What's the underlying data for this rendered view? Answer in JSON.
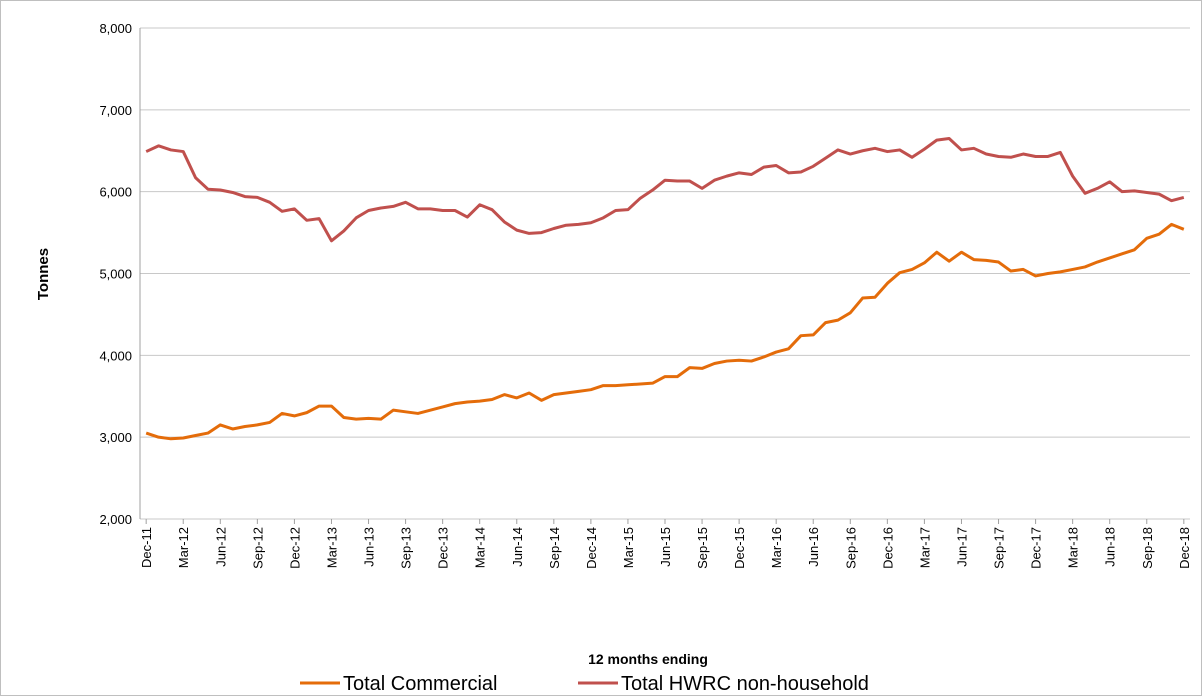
{
  "chart_data": {
    "type": "line",
    "y_label": "Tonnes",
    "x_label": "12 months ending",
    "ylim": [
      2000,
      8000
    ],
    "yticks": [
      {
        "value": 2000,
        "label": "2,000"
      },
      {
        "value": 3000,
        "label": "3,000"
      },
      {
        "value": 4000,
        "label": "4,000"
      },
      {
        "value": 5000,
        "label": "5,000"
      },
      {
        "value": 6000,
        "label": "6,000"
      },
      {
        "value": 7000,
        "label": "7,000"
      },
      {
        "value": 8000,
        "label": "8,000"
      }
    ],
    "grid": true,
    "legend": "bottom",
    "categories": [
      "Dec-11",
      null,
      null,
      "Mar-12",
      null,
      null,
      "Jun-12",
      null,
      null,
      "Sep-12",
      null,
      null,
      "Dec-12",
      null,
      null,
      "Mar-13",
      null,
      null,
      "Jun-13",
      null,
      null,
      "Sep-13",
      null,
      null,
      "Dec-13",
      null,
      null,
      "Mar-14",
      null,
      null,
      "Jun-14",
      null,
      null,
      "Sep-14",
      null,
      null,
      "Dec-14",
      null,
      null,
      "Mar-15",
      null,
      null,
      "Jun-15",
      null,
      null,
      "Sep-15",
      null,
      null,
      "Dec-15",
      null,
      null,
      "Mar-16",
      null,
      null,
      "Jun-16",
      null,
      null,
      "Sep-16",
      null,
      null,
      "Dec-16",
      null,
      null,
      "Mar-17",
      null,
      null,
      "Jun-17",
      null,
      null,
      "Sep-17",
      null,
      null,
      "Dec-17",
      null,
      null,
      "Mar-18",
      null,
      null,
      "Jun-18",
      null,
      null,
      "Sep-18",
      null,
      null,
      "Dec-18"
    ],
    "series": [
      {
        "name": "Total Commercial",
        "color": "#e46c0a",
        "values": [
          3050,
          3000,
          2980,
          2990,
          3020,
          3050,
          3150,
          3100,
          3130,
          3150,
          3180,
          3290,
          3260,
          3300,
          3380,
          3380,
          3240,
          3220,
          3230,
          3220,
          3330,
          3310,
          3290,
          3330,
          3370,
          3410,
          3430,
          3440,
          3460,
          3520,
          3480,
          3540,
          3450,
          3520,
          3540,
          3560,
          3580,
          3630,
          3630,
          3640,
          3650,
          3660,
          3740,
          3740,
          3850,
          3840,
          3900,
          3930,
          3940,
          3930,
          3980,
          4040,
          4080,
          4240,
          4250,
          4400,
          4430,
          4520,
          4700,
          4710,
          4880,
          5010,
          5050,
          5130,
          5260,
          5150,
          5260,
          5170,
          5160,
          5140,
          5030,
          5050,
          4970,
          5000,
          5020,
          5050,
          5080,
          5140,
          5190,
          5240,
          5290,
          5430,
          5480,
          5600,
          5540
        ]
      },
      {
        "name": "Total HWRC non-household",
        "color": "#c0504d",
        "values": [
          6490,
          6560,
          6510,
          6490,
          6170,
          6030,
          6020,
          5990,
          5940,
          5930,
          5870,
          5760,
          5790,
          5650,
          5670,
          5400,
          5520,
          5680,
          5770,
          5800,
          5820,
          5870,
          5790,
          5790,
          5770,
          5770,
          5690,
          5840,
          5780,
          5630,
          5530,
          5490,
          5500,
          5550,
          5590,
          5600,
          5620,
          5680,
          5770,
          5780,
          5920,
          6020,
          6140,
          6130,
          6130,
          6040,
          6140,
          6190,
          6230,
          6210,
          6300,
          6320,
          6230,
          6240,
          6310,
          6410,
          6510,
          6460,
          6500,
          6530,
          6490,
          6510,
          6420,
          6520,
          6630,
          6650,
          6510,
          6530,
          6460,
          6430,
          6420,
          6460,
          6430,
          6430,
          6480,
          6190,
          5980,
          6040,
          6120,
          6000,
          6010,
          5990,
          5970,
          5890,
          5930
        ]
      }
    ]
  }
}
